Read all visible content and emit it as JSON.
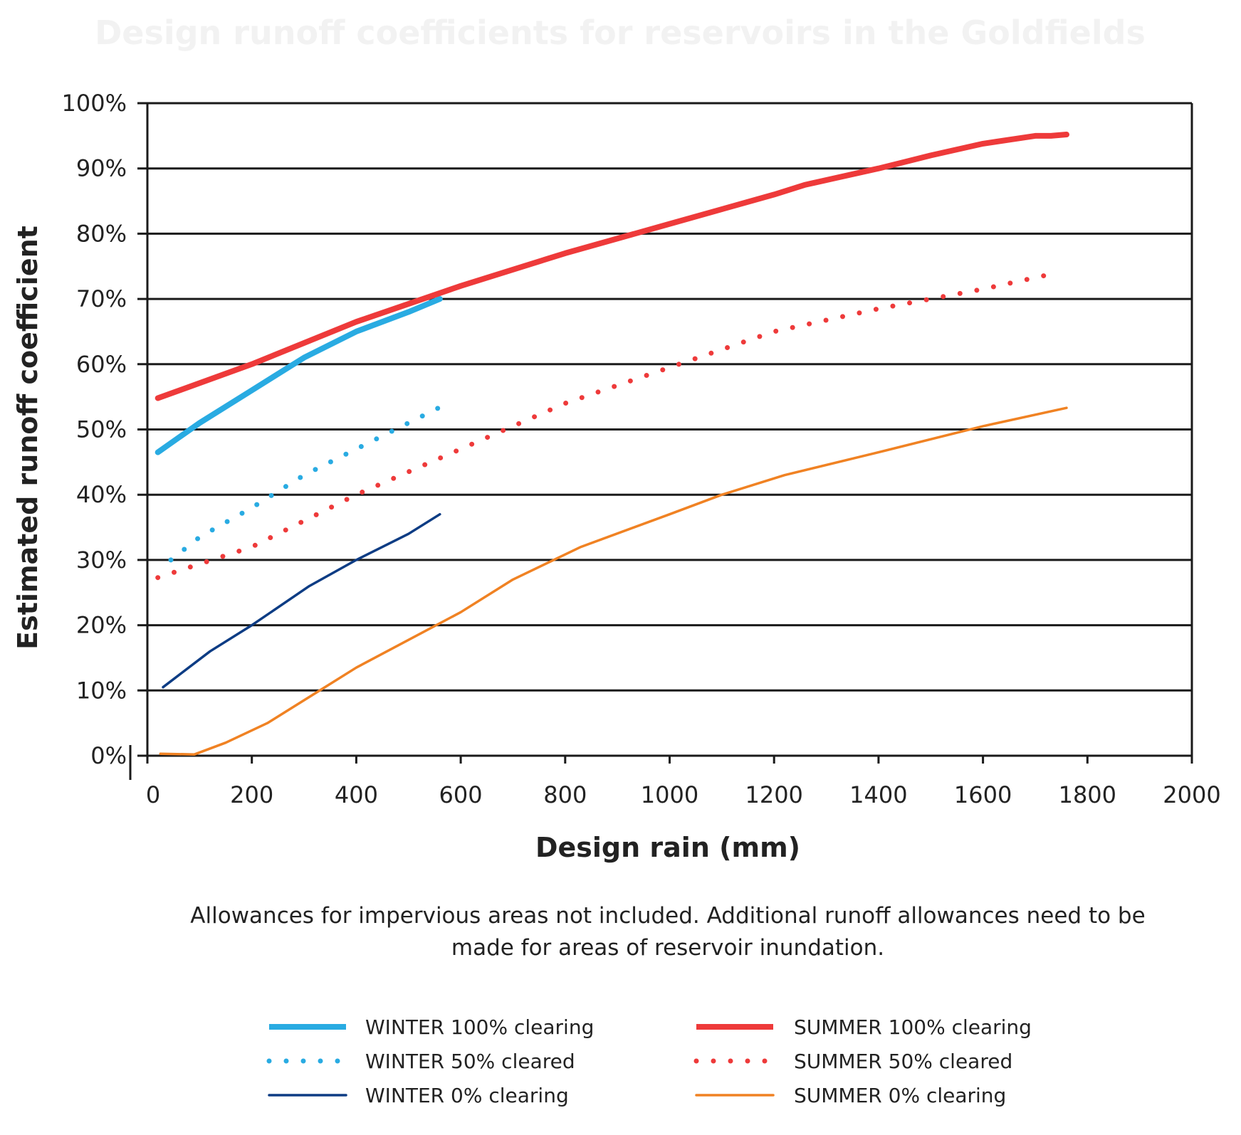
{
  "chart_data": {
    "type": "line",
    "title": "Design runoff coefficients for reservoirs in the Goldfields",
    "xlabel": "Design rain (mm)",
    "ylabel": "Estimated runoff coefficient",
    "xlim": [
      0,
      2000
    ],
    "ylim": [
      0,
      100
    ],
    "x_ticks": [
      "0",
      "200",
      "400",
      "600",
      "800",
      "1000",
      "1200",
      "1400",
      "1600",
      "1800",
      "2000"
    ],
    "y_ticks": [
      "0%",
      "10%",
      "20%",
      "30%",
      "40%",
      "50%",
      "60%",
      "70%",
      "80%",
      "90%",
      "100%"
    ],
    "grid": "horizontal",
    "legend_position": "bottom",
    "note_lines": [
      "Allowances for impervious areas not included.  Additional runoff allowances need to be",
      "made for areas of reservoir inundation."
    ],
    "series": [
      {
        "name": "WINTER 100% clearing",
        "color": "#29abe2",
        "style": "solid",
        "width": "thick",
        "points": [
          [
            20,
            46.5
          ],
          [
            100,
            51
          ],
          [
            200,
            56
          ],
          [
            300,
            61
          ],
          [
            400,
            65
          ],
          [
            500,
            68
          ],
          [
            560,
            70
          ]
        ]
      },
      {
        "name": "WINTER 50% cleared",
        "color": "#29abe2",
        "style": "dotted",
        "width": "dotted",
        "points": [
          [
            45,
            30
          ],
          [
            100,
            33.5
          ],
          [
            200,
            38
          ],
          [
            300,
            43
          ],
          [
            400,
            47
          ],
          [
            500,
            51
          ],
          [
            570,
            53.8
          ]
        ]
      },
      {
        "name": "WINTER 0% clearing",
        "color": "#0d3c84",
        "style": "solid",
        "width": "thin",
        "points": [
          [
            30,
            10.5
          ],
          [
            120,
            16
          ],
          [
            200,
            20
          ],
          [
            310,
            26
          ],
          [
            400,
            30
          ],
          [
            500,
            34
          ],
          [
            560,
            37
          ]
        ]
      },
      {
        "name": "SUMMER 100% clearing",
        "color": "#ee3a3a",
        "style": "solid",
        "width": "thick",
        "points": [
          [
            20,
            54.8
          ],
          [
            200,
            60
          ],
          [
            400,
            66.5
          ],
          [
            600,
            72
          ],
          [
            800,
            77
          ],
          [
            1000,
            81.5
          ],
          [
            1200,
            86
          ],
          [
            1260,
            87.5
          ],
          [
            1400,
            90
          ],
          [
            1500,
            92
          ],
          [
            1600,
            93.8
          ],
          [
            1700,
            95
          ],
          [
            1730,
            95
          ],
          [
            1760,
            95.2
          ]
        ]
      },
      {
        "name": "SUMMER 50% cleared",
        "color": "#ee3a3a",
        "style": "dotted",
        "width": "dotted",
        "points": [
          [
            20,
            27.3
          ],
          [
            200,
            32
          ],
          [
            400,
            40
          ],
          [
            600,
            47
          ],
          [
            800,
            54
          ],
          [
            1000,
            59.5
          ],
          [
            1200,
            65
          ],
          [
            1400,
            68.5
          ],
          [
            1600,
            71.5
          ],
          [
            1730,
            73.8
          ]
        ]
      },
      {
        "name": "SUMMER 0% clearing",
        "color": "#f08223",
        "style": "solid",
        "width": "thin",
        "points": [
          [
            25,
            0.3
          ],
          [
            90,
            0.2
          ],
          [
            150,
            2
          ],
          [
            230,
            5
          ],
          [
            320,
            9.5
          ],
          [
            400,
            13.5
          ],
          [
            600,
            22
          ],
          [
            700,
            27
          ],
          [
            830,
            32
          ],
          [
            1000,
            37
          ],
          [
            1100,
            40
          ],
          [
            1220,
            43
          ],
          [
            1400,
            46.5
          ],
          [
            1600,
            50.5
          ],
          [
            1760,
            53.3
          ]
        ]
      }
    ]
  }
}
